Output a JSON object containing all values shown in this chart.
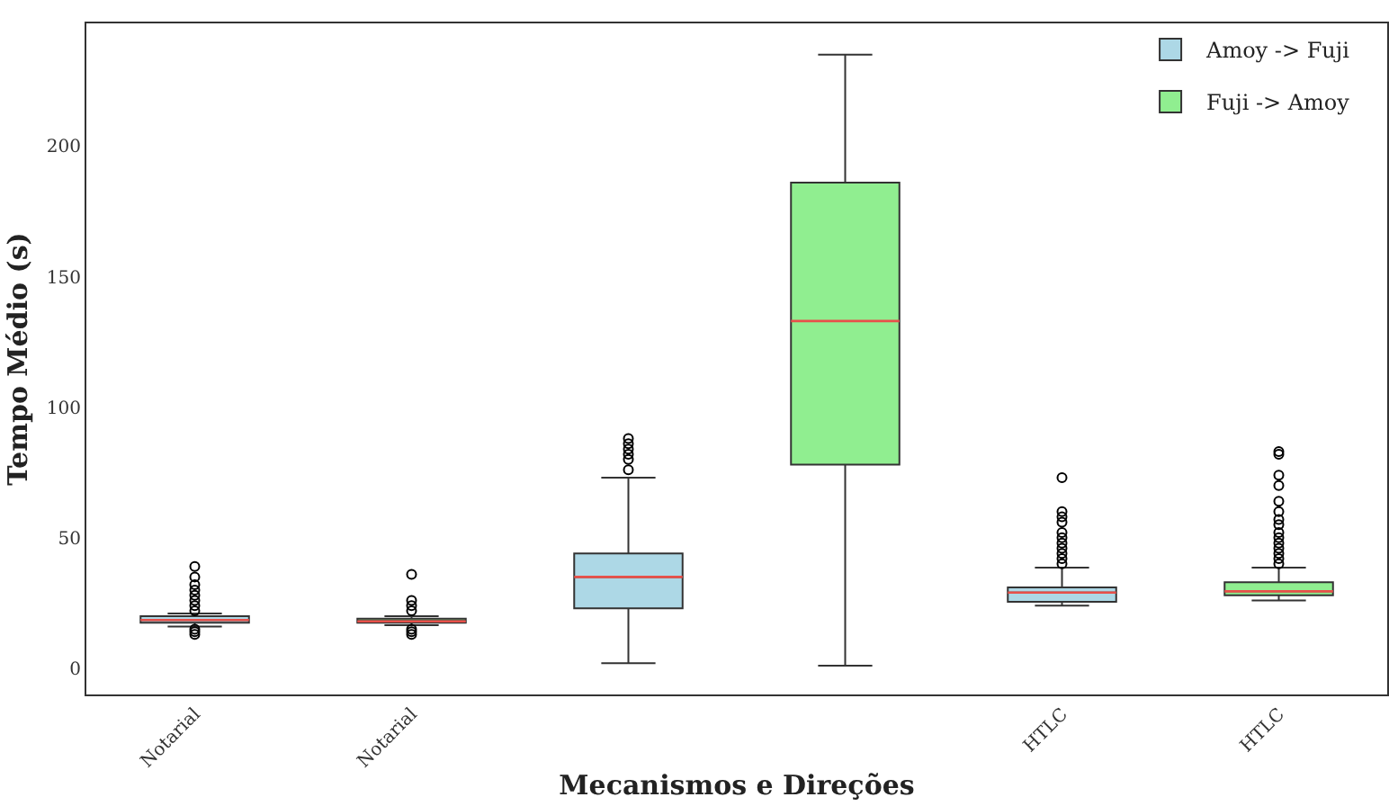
{
  "chart_data": {
    "type": "box",
    "xlabel": "Mecanismos e Direções",
    "ylabel": "Tempo Médio (s)",
    "categories": [
      "Notarial",
      "Notarial",
      null,
      null,
      "HTLC",
      "HTLC"
    ],
    "ylim": [
      -10,
      247
    ],
    "yticks": [
      0,
      50,
      100,
      150,
      200
    ],
    "legend": "top right",
    "series": [
      {
        "name": "Amoy -> Fuji",
        "color": "#add8e6",
        "boxes": [
          {
            "low": 16,
            "q1": 17.5,
            "median": 18.5,
            "q3": 20,
            "high": 21,
            "outliers": [
              13,
              14,
              15,
              22,
              24,
              26,
              28,
              30,
              32,
              35,
              39
            ]
          },
          null,
          {
            "low": 2,
            "q1": 23,
            "median": 35,
            "q3": 44,
            "high": 73,
            "outliers": [
              76,
              80,
              82,
              84,
              86,
              88
            ]
          },
          null,
          {
            "low": 24,
            "q1": 25.5,
            "median": 29,
            "q3": 31,
            "high": 38.6,
            "outliers": [
              40,
              42,
              44,
              46,
              48,
              50,
              52,
              56,
              58,
              60,
              73
            ]
          },
          null
        ]
      },
      {
        "name": "Fuji -> Amoy",
        "color": "#90ee90",
        "boxes": [
          null,
          {
            "low": 16.5,
            "q1": 17.5,
            "median": 18,
            "q3": 19,
            "high": 20,
            "outliers": [
              13,
              14,
              15,
              22,
              24,
              26,
              36
            ]
          },
          null,
          {
            "low": 1,
            "q1": 78,
            "median": 133,
            "q3": 186,
            "high": 235
          },
          null,
          {
            "low": 26,
            "q1": 28,
            "median": 29.5,
            "q3": 33,
            "high": 38.6,
            "outliers": [
              40,
              42,
              44,
              46,
              48,
              50,
              52,
              55,
              57,
              60,
              64,
              70,
              74,
              82,
              83
            ]
          }
        ]
      }
    ]
  }
}
